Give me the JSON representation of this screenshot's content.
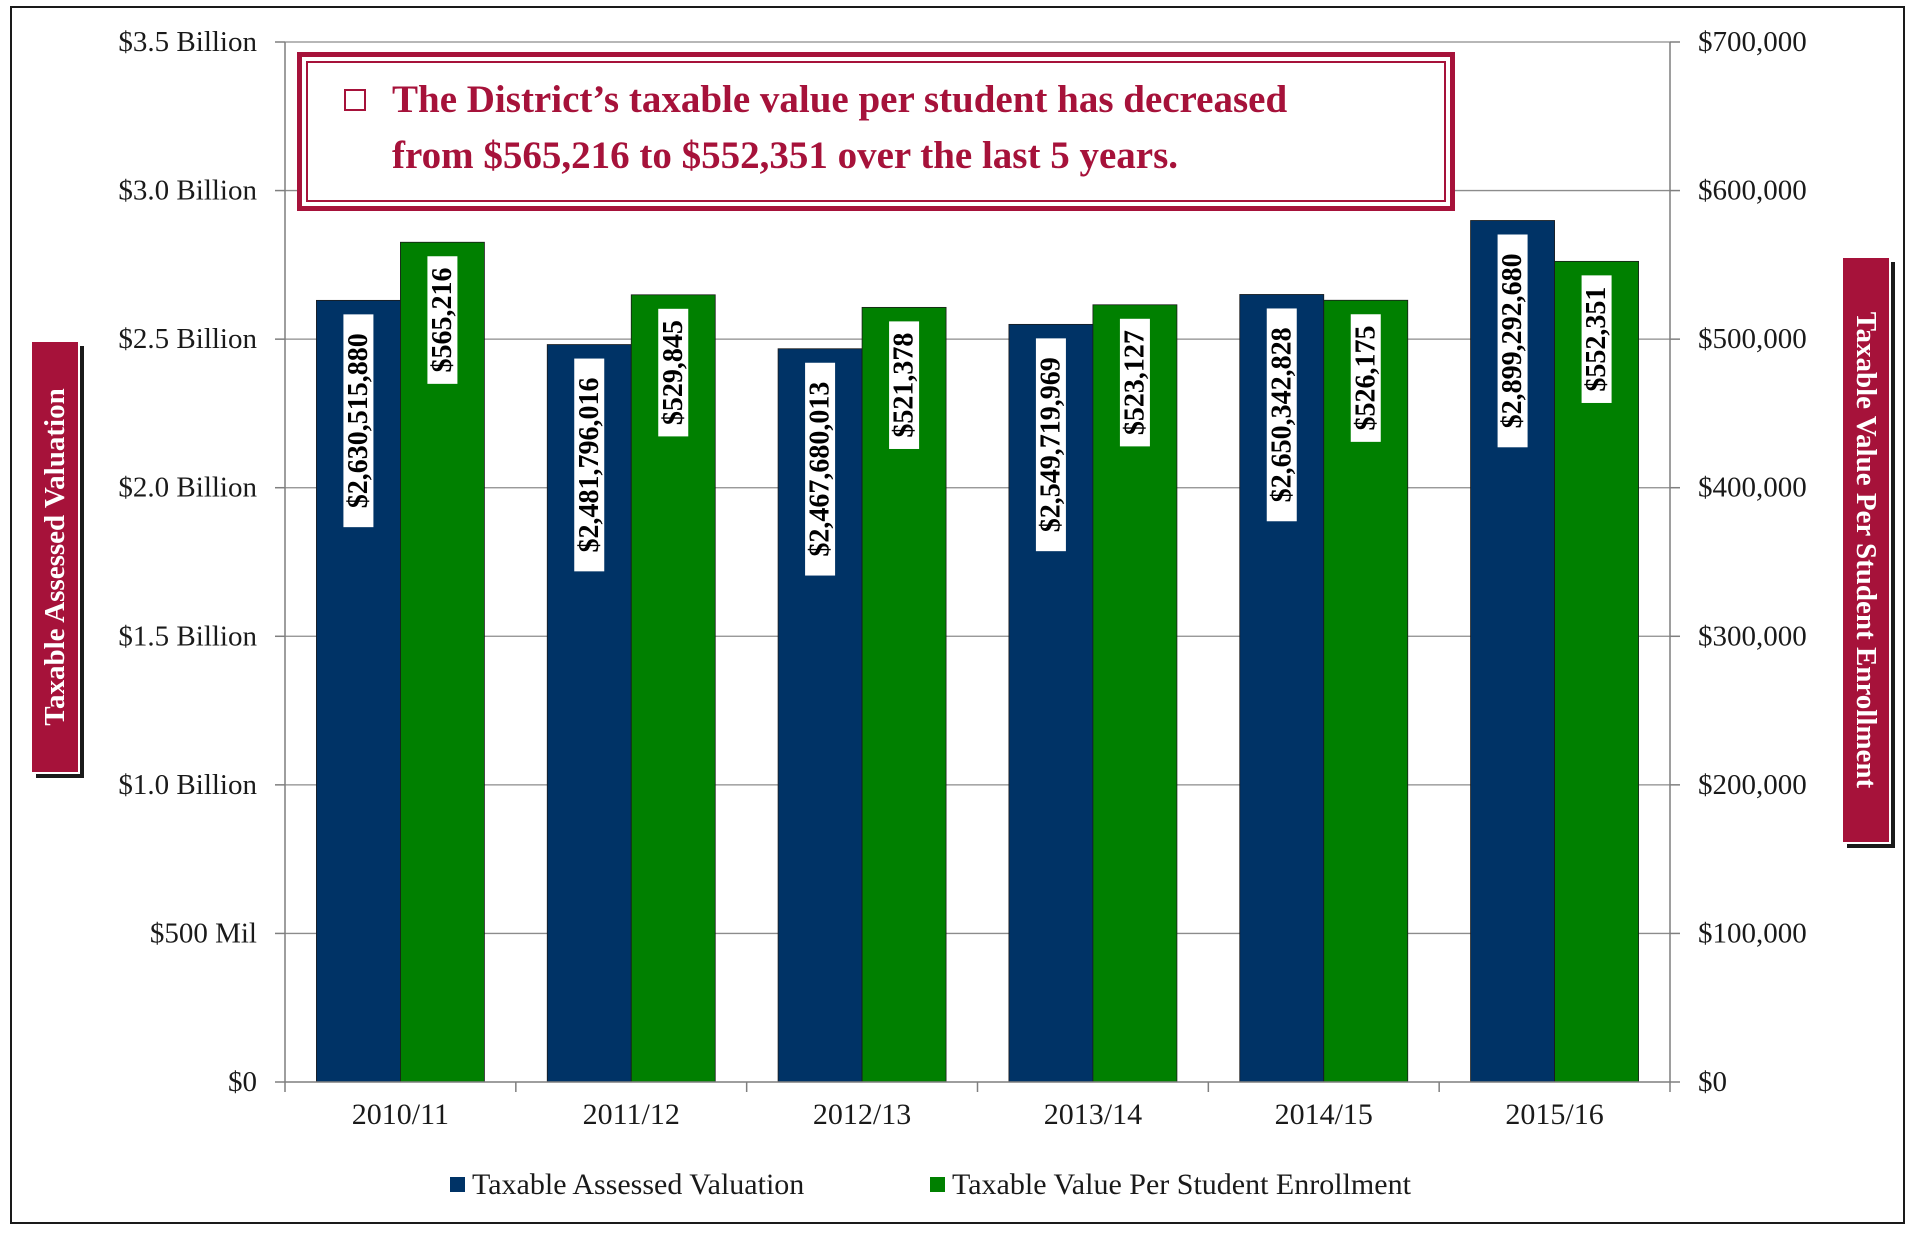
{
  "callout": {
    "line1": "The District’s taxable value per student has decreased",
    "line2": "from $565,216 to $552,351 over the last 5 years."
  },
  "colors": {
    "series1": "#003366",
    "series2": "#008000",
    "accent": "#a6123a"
  },
  "chart_data": {
    "type": "bar",
    "categories": [
      "2010/11",
      "2011/12",
      "2012/13",
      "2013/14",
      "2014/15",
      "2015/16"
    ],
    "series": [
      {
        "name": "Taxable Assessed Valuation",
        "axis": "left",
        "values": [
          2630515880,
          2481796016,
          2467680013,
          2549719969,
          2650342828,
          2899292680
        ],
        "labels": [
          "$2,630,515,880",
          "$2,481,796,016",
          "$2,467,680,013",
          "$2,549,719,969",
          "$2,650,342,828",
          "$2,899,292,680"
        ]
      },
      {
        "name": "Taxable Value Per Student Enrollment",
        "axis": "right",
        "values": [
          565216,
          529845,
          521378,
          523127,
          526175,
          552351
        ],
        "labels": [
          "$565,216",
          "$529,845",
          "$521,378",
          "$523,127",
          "$526,175",
          "$552,351"
        ]
      }
    ],
    "ylabel": "Taxable Assessed Valuation",
    "y2label": "Taxable Value Per Student Enrollment",
    "ylim": [
      0,
      3500000000
    ],
    "y2lim": [
      0,
      700000
    ],
    "y_ticks": [
      "$0",
      "$500 Mil",
      "$1.0 Billion",
      "$1.5 Billion",
      "$2.0 Billion",
      "$2.5 Billion",
      "$3.0 Billion",
      "$3.5 Billion"
    ],
    "y2_ticks": [
      "$0",
      "$100,000",
      "$200,000",
      "$300,000",
      "$400,000",
      "$500,000",
      "$600,000",
      "$700,000"
    ],
    "grid": true,
    "legend": "bottom"
  }
}
